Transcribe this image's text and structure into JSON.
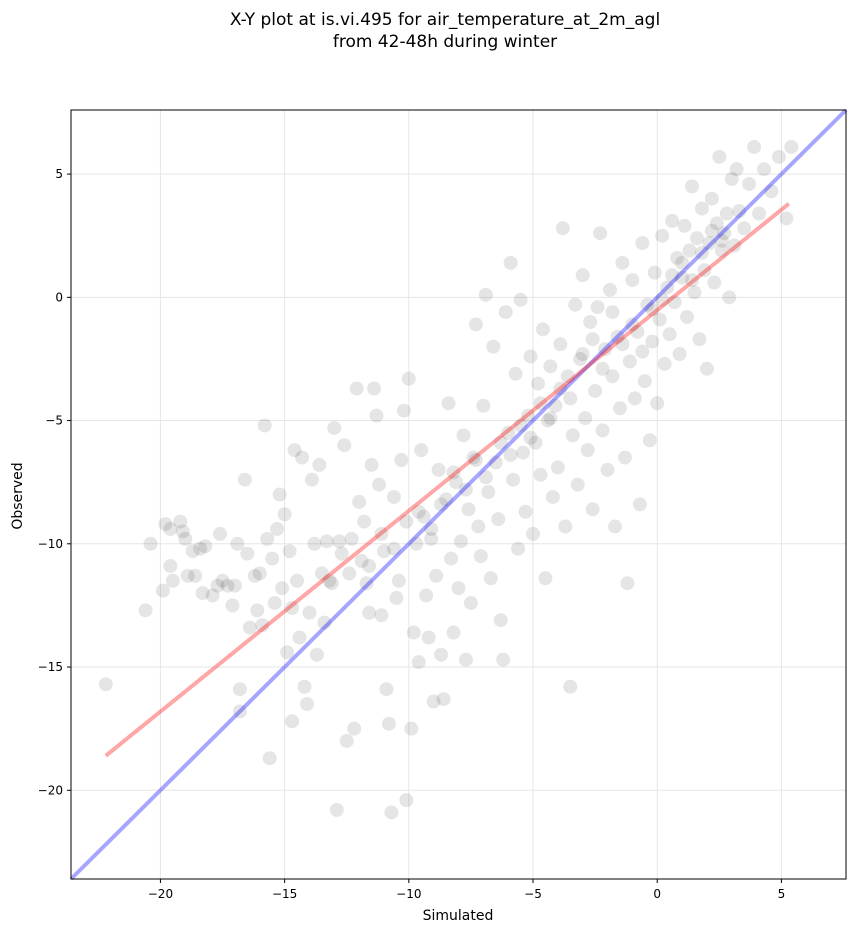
{
  "chart_data": {
    "type": "scatter",
    "title": "X-Y plot at is.vi.495 for air_temperature_at_2m_agl",
    "subtitle": "from 42-48h during winter",
    "xlabel": "Simulated",
    "ylabel": "Observed",
    "xlim": [
      -23.6,
      7.6
    ],
    "ylim": [
      -23.6,
      7.6
    ],
    "xticks": [
      -20,
      -15,
      -10,
      -5,
      0,
      5
    ],
    "yticks": [
      -20,
      -15,
      -10,
      -5,
      0,
      5
    ],
    "xtick_labels": [
      "−20",
      "−15",
      "−10",
      "−5",
      "0",
      "5"
    ],
    "ytick_labels": [
      "−20",
      "−15",
      "−10",
      "−5",
      "0",
      "5"
    ],
    "grid": true,
    "point_color": "#000000",
    "point_opacity": 0.1,
    "fit_line": {
      "color": "#ff0000",
      "x": [
        -22.2,
        5.3
      ],
      "y": [
        -18.6,
        3.8
      ],
      "opacity": 0.35
    },
    "identity_line": {
      "color": "#0000ff",
      "x": [
        -23.6,
        7.6
      ],
      "y": [
        -23.6,
        7.6
      ],
      "opacity": 0.35
    },
    "points": [
      [
        -22.2,
        -15.7
      ],
      [
        -20.6,
        -12.7
      ],
      [
        -20.4,
        -10.0
      ],
      [
        -19.9,
        -11.9
      ],
      [
        -19.8,
        -9.2
      ],
      [
        -19.6,
        -9.4
      ],
      [
        -19.6,
        -10.9
      ],
      [
        -19.5,
        -11.5
      ],
      [
        -19.2,
        -9.1
      ],
      [
        -19.1,
        -9.5
      ],
      [
        -19.0,
        -9.8
      ],
      [
        -18.9,
        -11.3
      ],
      [
        -18.7,
        -10.3
      ],
      [
        -18.6,
        -11.3
      ],
      [
        -18.4,
        -10.2
      ],
      [
        -18.3,
        -12.0
      ],
      [
        -18.2,
        -10.1
      ],
      [
        -17.9,
        -12.1
      ],
      [
        -17.7,
        -11.7
      ],
      [
        -17.6,
        -9.6
      ],
      [
        -17.5,
        -11.5
      ],
      [
        -17.3,
        -11.7
      ],
      [
        -17.1,
        -12.5
      ],
      [
        -17.0,
        -11.7
      ],
      [
        -16.9,
        -10.0
      ],
      [
        -16.8,
        -15.9
      ],
      [
        -16.8,
        -16.8
      ],
      [
        -16.6,
        -7.4
      ],
      [
        -16.5,
        -10.4
      ],
      [
        -16.4,
        -13.4
      ],
      [
        -16.2,
        -11.3
      ],
      [
        -16.1,
        -12.7
      ],
      [
        -16.0,
        -11.2
      ],
      [
        -15.9,
        -13.3
      ],
      [
        -15.8,
        -5.2
      ],
      [
        -15.7,
        -9.8
      ],
      [
        -15.6,
        -18.7
      ],
      [
        -15.5,
        -10.6
      ],
      [
        -15.4,
        -12.4
      ],
      [
        -15.3,
        -9.4
      ],
      [
        -15.2,
        -8.0
      ],
      [
        -15.1,
        -11.8
      ],
      [
        -15.0,
        -8.8
      ],
      [
        -14.9,
        -14.4
      ],
      [
        -14.8,
        -10.3
      ],
      [
        -14.7,
        -17.2
      ],
      [
        -14.6,
        -6.2
      ],
      [
        -14.5,
        -11.5
      ],
      [
        -14.4,
        -13.8
      ],
      [
        -14.3,
        -6.5
      ],
      [
        -14.2,
        -15.8
      ],
      [
        -14.1,
        -16.5
      ],
      [
        -14.0,
        -12.8
      ],
      [
        -13.9,
        -7.4
      ],
      [
        -13.8,
        -10.0
      ],
      [
        -13.7,
        -14.5
      ],
      [
        -13.6,
        -6.8
      ],
      [
        -13.5,
        -11.2
      ],
      [
        -13.4,
        -13.2
      ],
      [
        -13.3,
        -9.9
      ],
      [
        -13.2,
        -11.5
      ],
      [
        -13.1,
        -11.6
      ],
      [
        -13.0,
        -5.3
      ],
      [
        -12.9,
        -20.8
      ],
      [
        -12.8,
        -9.9
      ],
      [
        -12.7,
        -10.4
      ],
      [
        -12.6,
        -6.0
      ],
      [
        -12.5,
        -18.0
      ],
      [
        -12.4,
        -11.2
      ],
      [
        -12.3,
        -9.8
      ],
      [
        -12.2,
        -17.5
      ],
      [
        -12.1,
        -3.7
      ],
      [
        -12.0,
        -8.3
      ],
      [
        -11.9,
        -10.7
      ],
      [
        -11.8,
        -9.1
      ],
      [
        -11.7,
        -11.6
      ],
      [
        -11.6,
        -12.8
      ],
      [
        -11.5,
        -6.8
      ],
      [
        -11.4,
        -3.7
      ],
      [
        -11.3,
        -4.8
      ],
      [
        -11.2,
        -7.6
      ],
      [
        -11.1,
        -12.9
      ],
      [
        -11.0,
        -10.3
      ],
      [
        -10.9,
        -15.9
      ],
      [
        -10.8,
        -17.3
      ],
      [
        -10.7,
        -20.9
      ],
      [
        -10.6,
        -8.1
      ],
      [
        -10.5,
        -12.2
      ],
      [
        -10.4,
        -11.5
      ],
      [
        -10.3,
        -6.6
      ],
      [
        -10.2,
        -4.6
      ],
      [
        -10.1,
        -20.4
      ],
      [
        -10.0,
        -3.3
      ],
      [
        -9.9,
        -17.5
      ],
      [
        -9.8,
        -13.6
      ],
      [
        -9.7,
        -10.0
      ],
      [
        -9.6,
        -14.8
      ],
      [
        -9.5,
        -6.2
      ],
      [
        -9.4,
        -8.9
      ],
      [
        -9.3,
        -12.1
      ],
      [
        -9.2,
        -13.8
      ],
      [
        -9.1,
        -9.8
      ],
      [
        -9.0,
        -16.4
      ],
      [
        -8.9,
        -11.3
      ],
      [
        -8.8,
        -7.0
      ],
      [
        -8.7,
        -14.5
      ],
      [
        -8.6,
        -16.3
      ],
      [
        -8.5,
        -8.2
      ],
      [
        -8.4,
        -4.3
      ],
      [
        -8.3,
        -10.6
      ],
      [
        -8.2,
        -13.6
      ],
      [
        -8.1,
        -7.5
      ],
      [
        -8.0,
        -11.8
      ],
      [
        -7.9,
        -9.9
      ],
      [
        -7.8,
        -5.6
      ],
      [
        -7.7,
        -14.7
      ],
      [
        -7.6,
        -8.6
      ],
      [
        -7.5,
        -12.4
      ],
      [
        -7.4,
        -6.5
      ],
      [
        -7.3,
        -1.1
      ],
      [
        -7.2,
        -9.3
      ],
      [
        -7.1,
        -10.5
      ],
      [
        -7.0,
        -4.4
      ],
      [
        -6.9,
        0.1
      ],
      [
        -6.8,
        -7.9
      ],
      [
        -6.7,
        -11.4
      ],
      [
        -6.6,
        -2.0
      ],
      [
        -6.5,
        -6.7
      ],
      [
        -6.4,
        -9.0
      ],
      [
        -6.3,
        -13.1
      ],
      [
        -6.2,
        -14.7
      ],
      [
        -6.1,
        -0.6
      ],
      [
        -6.0,
        -5.5
      ],
      [
        -5.9,
        1.4
      ],
      [
        -5.8,
        -7.4
      ],
      [
        -5.7,
        -3.1
      ],
      [
        -5.6,
        -10.2
      ],
      [
        -5.5,
        -0.1
      ],
      [
        -5.4,
        -6.3
      ],
      [
        -5.3,
        -8.7
      ],
      [
        -5.2,
        -4.8
      ],
      [
        -5.1,
        -2.4
      ],
      [
        -5.0,
        -9.6
      ],
      [
        -4.9,
        -5.9
      ],
      [
        -4.8,
        -3.5
      ],
      [
        -4.7,
        -7.2
      ],
      [
        -4.6,
        -1.3
      ],
      [
        -4.5,
        -11.4
      ],
      [
        -4.4,
        -5.0
      ],
      [
        -4.3,
        -2.8
      ],
      [
        -4.2,
        -8.1
      ],
      [
        -4.1,
        -4.4
      ],
      [
        -4.0,
        -6.9
      ],
      [
        -3.9,
        -1.9
      ],
      [
        -3.8,
        2.8
      ],
      [
        -3.7,
        -9.3
      ],
      [
        -3.6,
        -3.2
      ],
      [
        -3.5,
        -15.8
      ],
      [
        -3.4,
        -5.6
      ],
      [
        -3.3,
        -0.3
      ],
      [
        -3.2,
        -7.6
      ],
      [
        -3.1,
        -2.5
      ],
      [
        -3.0,
        0.9
      ],
      [
        -2.9,
        -4.9
      ],
      [
        -2.8,
        -6.2
      ],
      [
        -2.7,
        -1.0
      ],
      [
        -2.6,
        -8.6
      ],
      [
        -2.5,
        -3.8
      ],
      [
        -2.4,
        -0.4
      ],
      [
        -2.3,
        2.6
      ],
      [
        -2.2,
        -5.4
      ],
      [
        -2.1,
        -2.1
      ],
      [
        -2.0,
        -7.0
      ],
      [
        -1.9,
        0.3
      ],
      [
        -1.8,
        -3.2
      ],
      [
        -1.7,
        -9.3
      ],
      [
        -1.6,
        -1.6
      ],
      [
        -1.5,
        -4.5
      ],
      [
        -1.4,
        1.4
      ],
      [
        -1.3,
        -6.5
      ],
      [
        -1.2,
        -11.6
      ],
      [
        -1.1,
        -2.6
      ],
      [
        -1.0,
        0.7
      ],
      [
        -0.9,
        -4.1
      ],
      [
        -0.8,
        -1.4
      ],
      [
        -0.7,
        -8.4
      ],
      [
        -0.6,
        2.2
      ],
      [
        -0.5,
        -3.4
      ],
      [
        -0.4,
        -0.3
      ],
      [
        -0.3,
        -5.8
      ],
      [
        -0.2,
        -1.8
      ],
      [
        -0.1,
        1.0
      ],
      [
        0.0,
        -4.3
      ],
      [
        0.1,
        -0.9
      ],
      [
        0.2,
        2.5
      ],
      [
        0.3,
        -2.7
      ],
      [
        0.4,
        0.4
      ],
      [
        0.5,
        -1.5
      ],
      [
        0.6,
        3.1
      ],
      [
        0.7,
        -0.2
      ],
      [
        0.8,
        1.6
      ],
      [
        0.9,
        -2.3
      ],
      [
        1.0,
        0.8
      ],
      [
        1.1,
        2.9
      ],
      [
        1.2,
        -0.8
      ],
      [
        1.3,
        1.9
      ],
      [
        1.4,
        4.5
      ],
      [
        1.5,
        0.2
      ],
      [
        1.6,
        2.4
      ],
      [
        1.7,
        -1.7
      ],
      [
        1.8,
        3.6
      ],
      [
        1.9,
        1.1
      ],
      [
        2.0,
        -2.9
      ],
      [
        2.1,
        2.2
      ],
      [
        2.2,
        4.0
      ],
      [
        2.3,
        0.6
      ],
      [
        2.4,
        3.0
      ],
      [
        2.5,
        5.7
      ],
      [
        2.6,
        1.9
      ],
      [
        2.7,
        2.6
      ],
      [
        2.8,
        3.4
      ],
      [
        2.9,
        0.0
      ],
      [
        3.0,
        4.8
      ],
      [
        3.1,
        2.1
      ],
      [
        3.2,
        5.2
      ],
      [
        3.3,
        3.5
      ],
      [
        3.5,
        2.8
      ],
      [
        3.7,
        4.6
      ],
      [
        3.9,
        6.1
      ],
      [
        4.1,
        3.4
      ],
      [
        4.3,
        5.2
      ],
      [
        4.6,
        4.3
      ],
      [
        4.9,
        5.7
      ],
      [
        5.2,
        3.2
      ],
      [
        5.4,
        6.1
      ],
      [
        -3.0,
        -2.3
      ],
      [
        -2.6,
        -1.7
      ],
      [
        -2.2,
        -2.9
      ],
      [
        -1.8,
        -0.6
      ],
      [
        -1.4,
        -1.9
      ],
      [
        -1.0,
        -1.1
      ],
      [
        -0.6,
        -2.2
      ],
      [
        -0.2,
        -0.5
      ],
      [
        0.2,
        -0.1
      ],
      [
        0.6,
        0.9
      ],
      [
        1.0,
        1.4
      ],
      [
        1.4,
        0.7
      ],
      [
        1.8,
        1.8
      ],
      [
        2.2,
        2.7
      ],
      [
        2.6,
        2.3
      ],
      [
        -6.3,
        -5.9
      ],
      [
        -5.9,
        -6.4
      ],
      [
        -5.5,
        -5.2
      ],
      [
        -5.1,
        -5.7
      ],
      [
        -4.7,
        -4.3
      ],
      [
        -4.3,
        -4.9
      ],
      [
        -3.9,
        -3.7
      ],
      [
        -3.5,
        -4.1
      ],
      [
        -8.7,
        -8.4
      ],
      [
        -8.2,
        -7.1
      ],
      [
        -7.7,
        -7.8
      ],
      [
        -7.3,
        -6.6
      ],
      [
        -6.9,
        -7.3
      ],
      [
        -11.6,
        -10.9
      ],
      [
        -11.1,
        -9.6
      ],
      [
        -10.6,
        -10.2
      ],
      [
        -10.1,
        -9.1
      ],
      [
        -9.6,
        -8.7
      ],
      [
        -9.1,
        -9.4
      ],
      [
        -14.7,
        -12.6
      ]
    ]
  }
}
